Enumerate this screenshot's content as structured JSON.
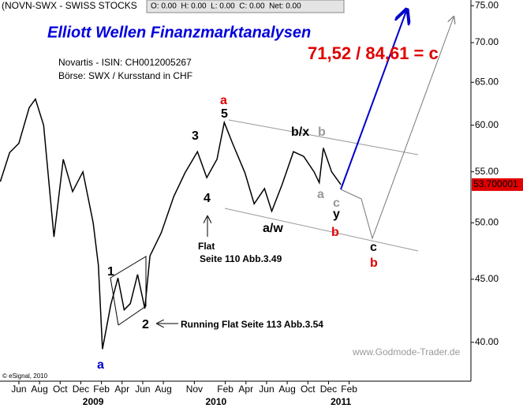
{
  "chart_data": {
    "type": "line",
    "symbol": "(NOVN-SWX - SWISS STOCKS",
    "ohlc": "O: 0.00  H: 0.00  L: 0.00  C: 0.00  Net: 0.00",
    "title": "Elliott Wellen Finanzmarktanalysen",
    "subtitle_lines": [
      "Novartis - ISIN: CH0012005267",
      "Börse: SWX / Kursstand in CHF"
    ],
    "target": "71,52 / 84,61 = c",
    "watermark": "www.Godmode-Trader.de",
    "copyright": "© eSignal, 2010",
    "annotations": [
      "a",
      "1",
      "2",
      "3",
      "4",
      "5",
      "a",
      "b/x",
      "b",
      "a",
      "c",
      "y",
      "b",
      "a/w",
      "c",
      "b",
      "Flat",
      "Seite 110 Abb.3.49",
      "Running Flat Seite 113 Abb.3.54"
    ],
    "log_scale": true,
    "color": "#000000",
    "x": [
      -1.8,
      -0.9,
      0,
      1.0,
      1.6,
      2.4,
      3.4,
      4.3,
      5.2,
      6.2,
      7.2,
      7.7,
      8.1,
      8.9,
      9.6,
      10.2,
      10.8,
      11.5,
      12.2,
      12.7,
      13.8,
      15.0,
      16.1,
      17.3,
      18.2,
      19.2,
      19.9,
      20.7,
      21.9,
      22.8,
      23.8,
      24.5,
      25.5,
      26.6,
      27.6,
      28.6,
      29.1,
      29.5,
      30.3,
      31.2
    ],
    "values": [
      54,
      57,
      58,
      62,
      63,
      60,
      48.7,
      56.3,
      53,
      55,
      50,
      46.2,
      39.5,
      42.9,
      45.1,
      42.5,
      43,
      45.4,
      42.6,
      47,
      49.1,
      52.5,
      54.9,
      57.1,
      54.4,
      56.3,
      60.3,
      58,
      54.9,
      51.8,
      53.3,
      51.1,
      53.7,
      57.1,
      56.6,
      55,
      53.9,
      57.5,
      55,
      53.7
    ],
    "last_price": 53.700001,
    "xlim": [
      -1.83,
      43.8
    ],
    "xticks": [
      {
        "value": 0,
        "label": "Jun"
      },
      {
        "value": 2,
        "label": "Aug"
      },
      {
        "value": 4,
        "label": "Oct"
      },
      {
        "value": 6,
        "label": "Dec"
      },
      {
        "value": 8,
        "label": "Feb"
      },
      {
        "value": 10,
        "label": "Apr"
      },
      {
        "value": 12,
        "label": "Jun"
      },
      {
        "value": 14,
        "label": "Aug"
      },
      {
        "value": 17,
        "label": "Nov"
      },
      {
        "value": 20,
        "label": "Feb"
      },
      {
        "value": 22,
        "label": "Apr"
      },
      {
        "value": 24,
        "label": "Jun"
      },
      {
        "value": 26,
        "label": "Aug"
      },
      {
        "value": 28,
        "label": "Oct"
      },
      {
        "value": 30,
        "label": "Dec"
      },
      {
        "value": 32,
        "label": "Feb"
      }
    ],
    "xticks_years": [
      {
        "value": 7.2,
        "label": "2009"
      },
      {
        "value": 19.1,
        "label": "2010"
      },
      {
        "value": 31.2,
        "label": "2011"
      }
    ],
    "ylim": [
      37.2,
      75.8
    ],
    "yticks": [
      {
        "value": 40,
        "label": "40.00"
      },
      {
        "value": 45,
        "label": "45.00"
      },
      {
        "value": 50,
        "label": "50.00"
      },
      {
        "value": 55,
        "label": "55.00"
      },
      {
        "value": 60,
        "label": "60.00"
      },
      {
        "value": 65,
        "label": "65.00"
      },
      {
        "value": 70,
        "label": "70.00"
      },
      {
        "value": 75,
        "label": "75.00"
      }
    ]
  }
}
